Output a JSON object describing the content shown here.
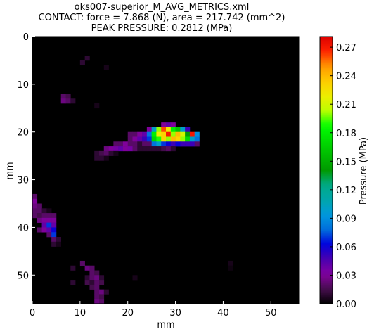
{
  "chart_data": {
    "type": "heatmap",
    "title_lines": [
      "oks007-superior_M_AVG_METRICS.xml",
      "CONTACT: force = 7.868 (N), area = 217.742 (mm^2)",
      "PEAK PRESSURE: 0.2812 (MPa)"
    ],
    "xlabel": "mm",
    "ylabel": "mm",
    "colorbar_label": "Pressure (MPa)",
    "xlim": [
      0,
      56
    ],
    "ylim": [
      56,
      0
    ],
    "xticks": [
      "0",
      "10",
      "20",
      "30",
      "40",
      "50"
    ],
    "yticks": [
      "0",
      "10",
      "20",
      "30",
      "40",
      "50"
    ],
    "colorbar_ticks": [
      "0.00",
      "0.03",
      "0.06",
      "0.09",
      "0.12",
      "0.15",
      "0.18",
      "0.21",
      "0.24",
      "0.27"
    ],
    "vmin": 0,
    "vmax": 0.2812,
    "colormap": "nipy_spectral",
    "background_color": "#000000",
    "cells": [
      [
        11,
        4,
        0.01
      ],
      [
        10,
        5,
        0.01
      ],
      [
        15,
        6,
        0.005
      ],
      [
        6,
        12,
        0.02
      ],
      [
        7,
        12,
        0.015
      ],
      [
        6,
        13,
        0.025
      ],
      [
        7,
        13,
        0.02
      ],
      [
        8,
        13,
        0.01
      ],
      [
        13,
        14,
        0.005
      ],
      [
        27,
        18,
        0.03
      ],
      [
        28,
        18,
        0.04
      ],
      [
        29,
        18,
        0.03
      ],
      [
        24,
        19,
        0.03
      ],
      [
        25,
        19,
        0.1
      ],
      [
        26,
        19,
        0.2
      ],
      [
        27,
        19,
        0.26
      ],
      [
        28,
        19,
        0.22
      ],
      [
        29,
        19,
        0.18
      ],
      [
        30,
        19,
        0.16
      ],
      [
        31,
        19,
        0.1
      ],
      [
        32,
        19,
        0.05
      ],
      [
        20,
        20,
        0.02
      ],
      [
        21,
        20,
        0.02
      ],
      [
        22,
        20,
        0.03
      ],
      [
        23,
        20,
        0.04
      ],
      [
        24,
        20,
        0.08
      ],
      [
        25,
        20,
        0.18
      ],
      [
        26,
        20,
        0.22
      ],
      [
        27,
        20,
        0.23
      ],
      [
        28,
        20,
        0.27
      ],
      [
        29,
        20,
        0.2
      ],
      [
        30,
        20,
        0.24
      ],
      [
        31,
        20,
        0.21
      ],
      [
        32,
        20,
        0.14
      ],
      [
        33,
        20,
        0.27
      ],
      [
        34,
        20,
        0.09
      ],
      [
        20,
        21,
        0.02
      ],
      [
        21,
        21,
        0.03
      ],
      [
        22,
        21,
        0.04
      ],
      [
        23,
        21,
        0.05
      ],
      [
        24,
        21,
        0.07
      ],
      [
        25,
        21,
        0.17
      ],
      [
        26,
        21,
        0.19
      ],
      [
        27,
        21,
        0.23
      ],
      [
        28,
        21,
        0.2
      ],
      [
        29,
        21,
        0.24
      ],
      [
        30,
        21,
        0.23
      ],
      [
        31,
        21,
        0.2
      ],
      [
        32,
        21,
        0.17
      ],
      [
        33,
        21,
        0.1
      ],
      [
        34,
        21,
        0.08
      ],
      [
        17,
        22,
        0.02
      ],
      [
        18,
        22,
        0.02
      ],
      [
        19,
        22,
        0.03
      ],
      [
        20,
        22,
        0.02
      ],
      [
        21,
        22,
        0.02
      ],
      [
        22,
        22,
        0.01
      ],
      [
        23,
        22,
        0.02
      ],
      [
        24,
        22,
        0.02
      ],
      [
        25,
        22,
        0.08
      ],
      [
        26,
        22,
        0.1
      ],
      [
        27,
        22,
        0.07
      ],
      [
        28,
        22,
        0.06
      ],
      [
        29,
        22,
        0.05
      ],
      [
        30,
        22,
        0.06
      ],
      [
        31,
        22,
        0.05
      ],
      [
        32,
        22,
        0.05
      ],
      [
        33,
        22,
        0.05
      ],
      [
        34,
        22,
        0.02
      ],
      [
        15,
        23,
        0.025
      ],
      [
        16,
        23,
        0.03
      ],
      [
        17,
        23,
        0.035
      ],
      [
        18,
        23,
        0.04
      ],
      [
        19,
        23,
        0.03
      ],
      [
        20,
        23,
        0.035
      ],
      [
        21,
        23,
        0.02
      ],
      [
        22,
        23,
        0.01
      ],
      [
        23,
        23,
        0.01
      ],
      [
        24,
        23,
        0.01
      ],
      [
        25,
        23,
        0.01
      ],
      [
        26,
        23,
        0.01
      ],
      [
        27,
        23,
        0.015
      ],
      [
        28,
        23,
        0.02
      ],
      [
        29,
        23,
        0.01
      ],
      [
        13,
        24,
        0.01
      ],
      [
        14,
        24,
        0.015
      ],
      [
        15,
        24,
        0.02
      ],
      [
        16,
        24,
        0.01
      ],
      [
        17,
        24,
        0.005
      ],
      [
        13,
        25,
        0.01
      ],
      [
        14,
        25,
        0.01
      ],
      [
        15,
        25,
        0.005
      ],
      [
        0,
        33,
        0.02
      ],
      [
        0,
        34,
        0.03
      ],
      [
        0,
        35,
        0.025
      ],
      [
        1,
        35,
        0.02
      ],
      [
        0,
        36,
        0.02
      ],
      [
        1,
        36,
        0.02
      ],
      [
        2,
        36,
        0.01
      ],
      [
        3,
        36,
        0.005
      ],
      [
        0,
        37,
        0.02
      ],
      [
        1,
        37,
        0.015
      ],
      [
        2,
        37,
        0.02
      ],
      [
        3,
        37,
        0.02
      ],
      [
        4,
        37,
        0.02
      ],
      [
        1,
        38,
        0.025
      ],
      [
        2,
        38,
        0.03
      ],
      [
        3,
        38,
        0.03
      ],
      [
        4,
        38,
        0.03
      ],
      [
        2,
        39,
        0.04
      ],
      [
        3,
        39,
        0.07
      ],
      [
        4,
        39,
        0.04
      ],
      [
        1,
        40,
        0.02
      ],
      [
        2,
        40,
        0.03
      ],
      [
        3,
        40,
        0.04
      ],
      [
        4,
        40,
        0.06
      ],
      [
        3,
        41,
        0.02
      ],
      [
        4,
        41,
        0.07
      ],
      [
        4,
        42,
        0.02
      ],
      [
        5,
        42,
        0.01
      ],
      [
        4,
        43,
        0.01
      ],
      [
        5,
        43,
        0.005
      ],
      [
        10,
        47,
        0.02
      ],
      [
        11,
        48,
        0.025
      ],
      [
        12,
        48,
        0.02
      ],
      [
        8,
        48,
        0.01
      ],
      [
        12,
        49,
        0.02
      ],
      [
        13,
        49,
        0.015
      ],
      [
        11,
        50,
        0.01
      ],
      [
        12,
        50,
        0.02
      ],
      [
        13,
        50,
        0.025
      ],
      [
        14,
        50,
        0.01
      ],
      [
        21,
        50,
        0.005
      ],
      [
        8,
        51,
        0.01
      ],
      [
        11,
        51,
        0.015
      ],
      [
        12,
        51,
        0.01
      ],
      [
        13,
        51,
        0.02
      ],
      [
        14,
        51,
        0.015
      ],
      [
        12,
        52,
        0.015
      ],
      [
        13,
        52,
        0.02
      ],
      [
        13,
        53,
        0.02
      ],
      [
        14,
        53,
        0.025
      ],
      [
        15,
        53,
        0.01
      ],
      [
        13,
        54,
        0.02
      ],
      [
        14,
        54,
        0.015
      ],
      [
        13,
        55,
        0.025
      ],
      [
        14,
        55,
        0.02
      ],
      [
        41,
        47,
        0.005
      ],
      [
        41,
        48,
        0.003
      ]
    ]
  }
}
